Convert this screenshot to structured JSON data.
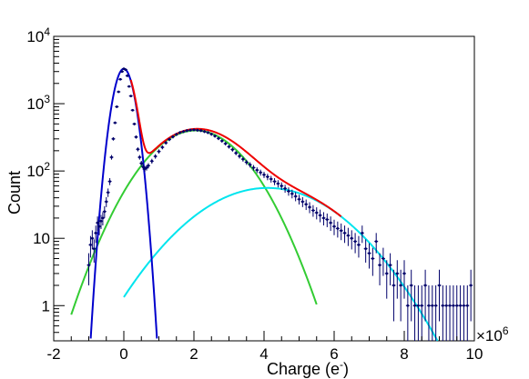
{
  "chart_data": {
    "type": "scatter",
    "xlabel": "Charge (e",
    "xlabel_sup": "-",
    "xlabel_close": ")",
    "ylabel": "Count",
    "x_multiplier_label": "×10",
    "x_multiplier_exp": "6",
    "xlim": [
      -2,
      10
    ],
    "ylim": [
      0.3,
      10000
    ],
    "yscale": "log",
    "grid": false,
    "legend": "none",
    "x_ticks": [
      {
        "value": -2,
        "label": "-2"
      },
      {
        "value": 0,
        "label": "0"
      },
      {
        "value": 2,
        "label": "2"
      },
      {
        "value": 4,
        "label": "4"
      },
      {
        "value": 6,
        "label": "6"
      },
      {
        "value": 8,
        "label": "8"
      },
      {
        "value": 10,
        "label": "10"
      }
    ],
    "y_ticks": [
      {
        "value": 1,
        "base": "1",
        "sup": ""
      },
      {
        "value": 10,
        "base": "10",
        "sup": ""
      },
      {
        "value": 100,
        "base": "10",
        "sup": "2"
      },
      {
        "value": 1000,
        "base": "10",
        "sup": "3"
      },
      {
        "value": 10000,
        "base": "10",
        "sup": "4"
      }
    ],
    "colors": {
      "points": "#00006a",
      "pedestal_fit": "#0000cc",
      "single_pe_fit": "#33cc33",
      "double_pe_fit": "#00e5ee",
      "total_fit": "#ee0000"
    },
    "fits": [
      {
        "id": "pedestal",
        "kind": "gaussian",
        "amplitude": 3300,
        "mean": 0.0,
        "sigma": 0.22
      },
      {
        "id": "single_pe",
        "kind": "gaussian",
        "amplitude": 400,
        "mean": 2.05,
        "sigma": 1.0
      },
      {
        "id": "double_pe",
        "kind": "gaussian",
        "amplitude": 56,
        "mean": 4.1,
        "sigma": 1.5
      }
    ],
    "total_fit_range": [
      0.2,
      6.2
    ],
    "points": [
      {
        "x": -1.0,
        "y": 4
      },
      {
        "x": -0.95,
        "y": 8
      },
      {
        "x": -0.9,
        "y": 10
      },
      {
        "x": -0.85,
        "y": 7
      },
      {
        "x": -0.8,
        "y": 12
      },
      {
        "x": -0.75,
        "y": 17
      },
      {
        "x": -0.7,
        "y": 15
      },
      {
        "x": -0.65,
        "y": 18
      },
      {
        "x": -0.6,
        "y": 20
      },
      {
        "x": -0.55,
        "y": 25
      },
      {
        "x": -0.5,
        "y": 35
      },
      {
        "x": -0.45,
        "y": 48
      },
      {
        "x": -0.4,
        "y": 70
      },
      {
        "x": -0.35,
        "y": 160
      },
      {
        "x": -0.3,
        "y": 300
      },
      {
        "x": -0.25,
        "y": 520
      },
      {
        "x": -0.2,
        "y": 900
      },
      {
        "x": -0.15,
        "y": 1500
      },
      {
        "x": -0.1,
        "y": 2300
      },
      {
        "x": -0.05,
        "y": 3000
      },
      {
        "x": 0.0,
        "y": 3300
      },
      {
        "x": 0.05,
        "y": 3200
      },
      {
        "x": 0.1,
        "y": 2600
      },
      {
        "x": 0.15,
        "y": 1800
      },
      {
        "x": 0.2,
        "y": 1300
      },
      {
        "x": 0.25,
        "y": 800
      },
      {
        "x": 0.3,
        "y": 500
      },
      {
        "x": 0.35,
        "y": 320
      },
      {
        "x": 0.4,
        "y": 210
      },
      {
        "x": 0.45,
        "y": 160
      },
      {
        "x": 0.5,
        "y": 130
      },
      {
        "x": 0.55,
        "y": 115
      },
      {
        "x": 0.6,
        "y": 108
      },
      {
        "x": 0.65,
        "y": 112
      },
      {
        "x": 0.7,
        "y": 120
      },
      {
        "x": 0.8,
        "y": 140
      },
      {
        "x": 0.9,
        "y": 165
      },
      {
        "x": 1.0,
        "y": 195
      },
      {
        "x": 1.1,
        "y": 225
      },
      {
        "x": 1.2,
        "y": 262
      },
      {
        "x": 1.3,
        "y": 295
      },
      {
        "x": 1.4,
        "y": 322
      },
      {
        "x": 1.5,
        "y": 350
      },
      {
        "x": 1.6,
        "y": 372
      },
      {
        "x": 1.7,
        "y": 385
      },
      {
        "x": 1.8,
        "y": 398
      },
      {
        "x": 1.9,
        "y": 405
      },
      {
        "x": 2.0,
        "y": 408
      },
      {
        "x": 2.1,
        "y": 404
      },
      {
        "x": 2.2,
        "y": 398
      },
      {
        "x": 2.3,
        "y": 385
      },
      {
        "x": 2.4,
        "y": 372
      },
      {
        "x": 2.5,
        "y": 352
      },
      {
        "x": 2.6,
        "y": 330
      },
      {
        "x": 2.7,
        "y": 305
      },
      {
        "x": 2.8,
        "y": 280
      },
      {
        "x": 2.9,
        "y": 255
      },
      {
        "x": 3.0,
        "y": 230
      },
      {
        "x": 3.1,
        "y": 208
      },
      {
        "x": 3.2,
        "y": 185
      },
      {
        "x": 3.3,
        "y": 166
      },
      {
        "x": 3.4,
        "y": 150
      },
      {
        "x": 3.5,
        "y": 135
      },
      {
        "x": 3.6,
        "y": 124
      },
      {
        "x": 3.7,
        "y": 112
      },
      {
        "x": 3.8,
        "y": 103
      },
      {
        "x": 3.9,
        "y": 95
      },
      {
        "x": 4.0,
        "y": 88
      },
      {
        "x": 4.1,
        "y": 82
      },
      {
        "x": 4.2,
        "y": 76
      },
      {
        "x": 4.3,
        "y": 70
      },
      {
        "x": 4.4,
        "y": 65
      },
      {
        "x": 4.5,
        "y": 60
      },
      {
        "x": 4.6,
        "y": 55
      },
      {
        "x": 4.7,
        "y": 50
      },
      {
        "x": 4.8,
        "y": 46
      },
      {
        "x": 4.9,
        "y": 42
      },
      {
        "x": 5.0,
        "y": 38
      },
      {
        "x": 5.1,
        "y": 35
      },
      {
        "x": 5.2,
        "y": 32
      },
      {
        "x": 5.3,
        "y": 29
      },
      {
        "x": 5.4,
        "y": 26
      },
      {
        "x": 5.5,
        "y": 24
      },
      {
        "x": 5.6,
        "y": 22
      },
      {
        "x": 5.7,
        "y": 20
      },
      {
        "x": 5.8,
        "y": 19
      },
      {
        "x": 5.9,
        "y": 17
      },
      {
        "x": 6.0,
        "y": 15
      },
      {
        "x": 6.1,
        "y": 14
      },
      {
        "x": 6.2,
        "y": 13
      },
      {
        "x": 6.3,
        "y": 12
      },
      {
        "x": 6.4,
        "y": 11
      },
      {
        "x": 6.5,
        "y": 10
      },
      {
        "x": 6.6,
        "y": 9
      },
      {
        "x": 6.7,
        "y": 8
      },
      {
        "x": 6.8,
        "y": 12
      },
      {
        "x": 6.9,
        "y": 7
      },
      {
        "x": 7.0,
        "y": 6
      },
      {
        "x": 7.1,
        "y": 5
      },
      {
        "x": 7.2,
        "y": 9
      },
      {
        "x": 7.3,
        "y": 4
      },
      {
        "x": 7.4,
        "y": 5
      },
      {
        "x": 7.5,
        "y": 3
      },
      {
        "x": 7.6,
        "y": 4
      },
      {
        "x": 7.7,
        "y": 2
      },
      {
        "x": 7.8,
        "y": 3
      },
      {
        "x": 7.9,
        "y": 2
      },
      {
        "x": 8.0,
        "y": 3
      },
      {
        "x": 8.1,
        "y": 1
      },
      {
        "x": 8.2,
        "y": 2
      },
      {
        "x": 8.3,
        "y": 1
      },
      {
        "x": 8.4,
        "y": 1
      },
      {
        "x": 8.5,
        "y": 1
      },
      {
        "x": 8.6,
        "y": 2
      },
      {
        "x": 8.7,
        "y": 1
      },
      {
        "x": 8.8,
        "y": 1
      },
      {
        "x": 8.9,
        "y": 1
      },
      {
        "x": 9.0,
        "y": 2
      },
      {
        "x": 9.1,
        "y": 1
      },
      {
        "x": 9.2,
        "y": 1
      },
      {
        "x": 9.3,
        "y": 1
      },
      {
        "x": 9.4,
        "y": 1
      },
      {
        "x": 9.5,
        "y": 1
      },
      {
        "x": 9.6,
        "y": 1
      },
      {
        "x": 9.7,
        "y": 1
      },
      {
        "x": 9.8,
        "y": 1
      },
      {
        "x": 9.9,
        "y": 2
      }
    ]
  }
}
